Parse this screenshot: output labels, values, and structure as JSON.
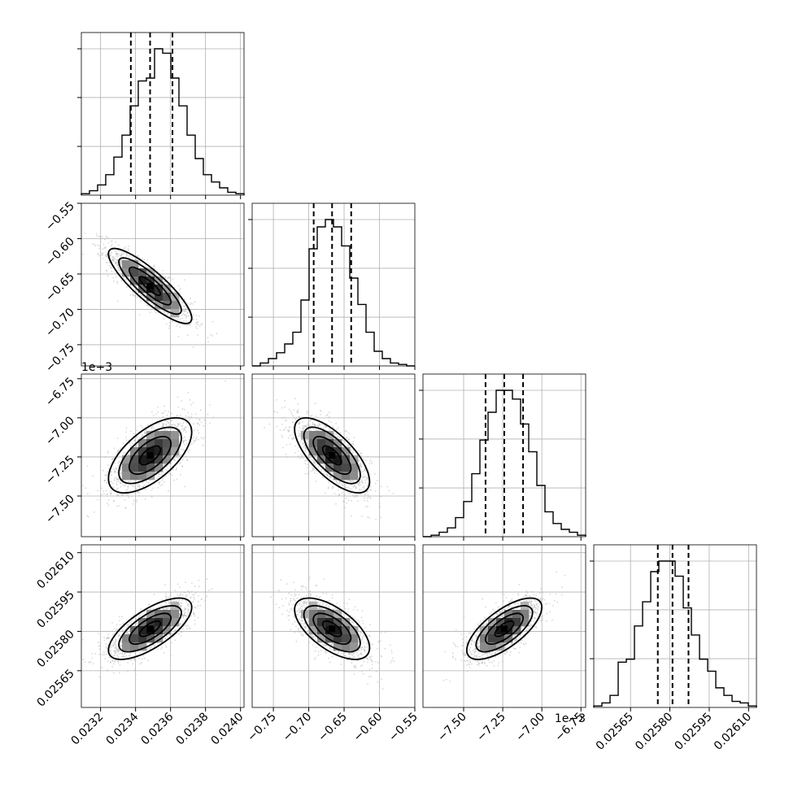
{
  "chart_data": {
    "type": "corner",
    "parameters": [
      {
        "index": 0,
        "range": [
          0.02309,
          0.02402
        ],
        "ticks": [
          "0.0232",
          "0.0234",
          "0.0236",
          "0.0238",
          "0.0240"
        ],
        "tick_values": [
          0.0232,
          0.0234,
          0.0236,
          0.0238,
          0.024
        ],
        "offset_label": ""
      },
      {
        "index": 1,
        "range": [
          -0.78,
          -0.55
        ],
        "ticks": [
          "−0.75",
          "−0.70",
          "−0.65",
          "−0.60",
          "−0.55"
        ],
        "tick_values": [
          -0.75,
          -0.7,
          -0.65,
          -0.6,
          -0.55
        ],
        "offset_label": ""
      },
      {
        "index": 2,
        "range": [
          -7.76,
          -6.72
        ],
        "ticks": [
          "−7.50",
          "−7.25",
          "−7.00",
          "−6.75"
        ],
        "tick_values": [
          -7.5,
          -7.25,
          -7.0,
          -6.75
        ],
        "offset_label": "1e−3"
      },
      {
        "index": 3,
        "range": [
          0.02551,
          0.02613
        ],
        "ticks": [
          "0.02565",
          "0.02580",
          "0.02595",
          "0.02610"
        ],
        "tick_values": [
          0.02565,
          0.0258,
          0.02595,
          0.0261
        ],
        "offset_label": ""
      }
    ],
    "quantiles": [
      [
        0.023373,
        0.023483,
        0.023611
      ],
      [
        -0.693,
        -0.667,
        -0.64
      ],
      [
        -7.36,
        -7.24,
        -7.12
      ],
      [
        0.025754,
        0.02581,
        0.025871
      ]
    ],
    "histograms": [
      {
        "edges": [
          0.02309,
          0.02402
        ],
        "counts": [
          1,
          3,
          7,
          14,
          26,
          41,
          61,
          78,
          80,
          100,
          97,
          80,
          61,
          41,
          25,
          14,
          9,
          5,
          2,
          1
        ]
      },
      {
        "edges": [
          -0.78,
          -0.55
        ],
        "counts": [
          0,
          2,
          5,
          9,
          15,
          23,
          45,
          80,
          95,
          100,
          95,
          82,
          60,
          42,
          23,
          10,
          5,
          2,
          1,
          0
        ]
      },
      {
        "edges": [
          -7.76,
          -6.72
        ],
        "counts": [
          0,
          1,
          3,
          6,
          13,
          24,
          43,
          66,
          85,
          100,
          100,
          94,
          77,
          58,
          35,
          17,
          9,
          5,
          3,
          1
        ]
      },
      {
        "edges": [
          0.02551,
          0.02613
        ],
        "counts": [
          1,
          3,
          8,
          30,
          32,
          54,
          70,
          90,
          97,
          97,
          87,
          66,
          48,
          32,
          24,
          13,
          8,
          4,
          3,
          1
        ]
      }
    ],
    "correlation": [
      [
        1.0,
        -0.86,
        0.62,
        0.7
      ],
      [
        -0.86,
        1.0,
        -0.7,
        -0.62
      ],
      [
        0.62,
        -0.7,
        1.0,
        0.7
      ],
      [
        0.7,
        -0.62,
        0.7,
        1.0
      ]
    ],
    "grid": true
  }
}
